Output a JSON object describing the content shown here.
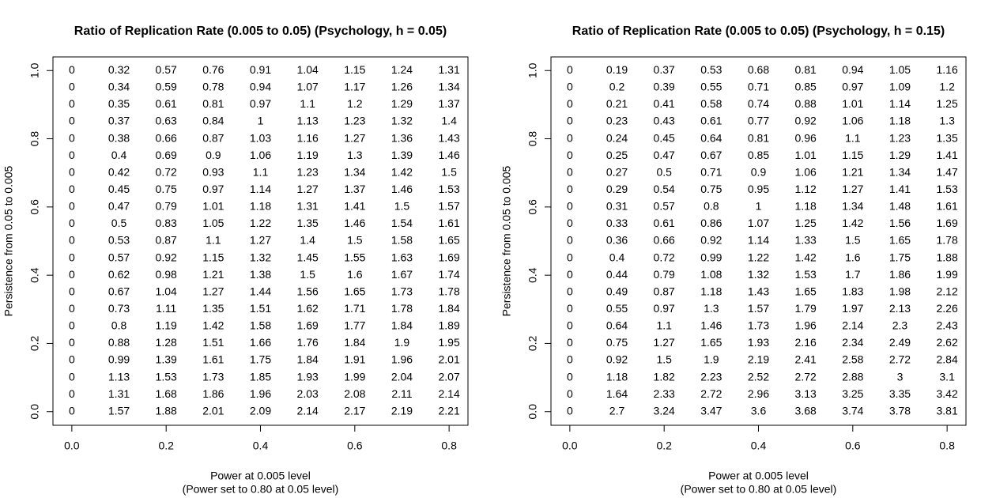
{
  "chart_data": [
    {
      "type": "text-grid",
      "title": "Ratio of Replication Rate (0.005 to 0.05) (Psychology, h = 0.05)",
      "xlabel": [
        "Power at 0.005 level",
        "(Power set to 0.80 at 0.05 level)"
      ],
      "ylabel": "Persistence from 0.05 to 0.005",
      "x": [
        0,
        0.1,
        0.2,
        0.3,
        0.4,
        0.5,
        0.6,
        0.7,
        0.8
      ],
      "y": [
        1,
        0.95,
        0.9,
        0.85,
        0.8,
        0.75,
        0.7,
        0.65,
        0.6,
        0.55,
        0.5,
        0.45,
        0.4,
        0.35,
        0.3,
        0.25,
        0.2,
        0.15,
        0.1,
        0.05,
        0
      ],
      "values": [
        [
          0,
          0.32,
          0.57,
          0.76,
          0.91,
          1.04,
          1.15,
          1.24,
          1.31
        ],
        [
          0,
          0.34,
          0.59,
          0.78,
          0.94,
          1.07,
          1.17,
          1.26,
          1.34
        ],
        [
          0,
          0.35,
          0.61,
          0.81,
          0.97,
          1.1,
          1.2,
          1.29,
          1.37
        ],
        [
          0,
          0.37,
          0.63,
          0.84,
          1,
          1.13,
          1.23,
          1.32,
          1.4
        ],
        [
          0,
          0.38,
          0.66,
          0.87,
          1.03,
          1.16,
          1.27,
          1.36,
          1.43
        ],
        [
          0,
          0.4,
          0.69,
          0.9,
          1.06,
          1.19,
          1.3,
          1.39,
          1.46
        ],
        [
          0,
          0.42,
          0.72,
          0.93,
          1.1,
          1.23,
          1.34,
          1.42,
          1.5
        ],
        [
          0,
          0.45,
          0.75,
          0.97,
          1.14,
          1.27,
          1.37,
          1.46,
          1.53
        ],
        [
          0,
          0.47,
          0.79,
          1.01,
          1.18,
          1.31,
          1.41,
          1.5,
          1.57
        ],
        [
          0,
          0.5,
          0.83,
          1.05,
          1.22,
          1.35,
          1.46,
          1.54,
          1.61
        ],
        [
          0,
          0.53,
          0.87,
          1.1,
          1.27,
          1.4,
          1.5,
          1.58,
          1.65
        ],
        [
          0,
          0.57,
          0.92,
          1.15,
          1.32,
          1.45,
          1.55,
          1.63,
          1.69
        ],
        [
          0,
          0.62,
          0.98,
          1.21,
          1.38,
          1.5,
          1.6,
          1.67,
          1.74
        ],
        [
          0,
          0.67,
          1.04,
          1.27,
          1.44,
          1.56,
          1.65,
          1.73,
          1.78
        ],
        [
          0,
          0.73,
          1.11,
          1.35,
          1.51,
          1.62,
          1.71,
          1.78,
          1.84
        ],
        [
          0,
          0.8,
          1.19,
          1.42,
          1.58,
          1.69,
          1.77,
          1.84,
          1.89
        ],
        [
          0,
          0.88,
          1.28,
          1.51,
          1.66,
          1.76,
          1.84,
          1.9,
          1.95
        ],
        [
          0,
          0.99,
          1.39,
          1.61,
          1.75,
          1.84,
          1.91,
          1.96,
          2.01
        ],
        [
          0,
          1.13,
          1.53,
          1.73,
          1.85,
          1.93,
          1.99,
          2.04,
          2.07
        ],
        [
          0,
          1.31,
          1.68,
          1.86,
          1.96,
          2.03,
          2.08,
          2.11,
          2.14
        ],
        [
          0,
          1.57,
          1.88,
          2.01,
          2.09,
          2.14,
          2.17,
          2.19,
          2.21
        ]
      ],
      "color": "#000000",
      "highlight_color": "#ff0000",
      "highlight_max": 1,
      "xlim": [
        -0.04,
        0.84
      ],
      "ylim": [
        -0.04,
        1.04
      ],
      "xticks": [
        {
          "value": 0,
          "label": "0.0"
        },
        0.2,
        0.4,
        0.6,
        0.8
      ],
      "yticks": [
        {
          "value": 0,
          "label": "0.0"
        },
        0.2,
        0.4,
        0.6,
        0.8,
        {
          "value": 1,
          "label": "1.0"
        }
      ]
    },
    {
      "type": "text-grid",
      "title": "Ratio of Replication Rate (0.005 to 0.05) (Psychology, h = 0.15)",
      "xlabel": [
        "Power at 0.005 level",
        "(Power set to 0.80 at 0.05 level)"
      ],
      "ylabel": "Persistence from 0.05 to 0.005",
      "x": [
        0,
        0.1,
        0.2,
        0.3,
        0.4,
        0.5,
        0.6,
        0.7,
        0.8
      ],
      "y": [
        1,
        0.95,
        0.9,
        0.85,
        0.8,
        0.75,
        0.7,
        0.65,
        0.6,
        0.55,
        0.5,
        0.45,
        0.4,
        0.35,
        0.3,
        0.25,
        0.2,
        0.15,
        0.1,
        0.05,
        0
      ],
      "values": [
        [
          0,
          0.19,
          0.37,
          0.53,
          0.68,
          0.81,
          0.94,
          1.05,
          1.16
        ],
        [
          0,
          0.2,
          0.39,
          0.55,
          0.71,
          0.85,
          0.97,
          1.09,
          1.2
        ],
        [
          0,
          0.21,
          0.41,
          0.58,
          0.74,
          0.88,
          1.01,
          1.14,
          1.25
        ],
        [
          0,
          0.23,
          0.43,
          0.61,
          0.77,
          0.92,
          1.06,
          1.18,
          1.3
        ],
        [
          0,
          0.24,
          0.45,
          0.64,
          0.81,
          0.96,
          1.1,
          1.23,
          1.35
        ],
        [
          0,
          0.25,
          0.47,
          0.67,
          0.85,
          1.01,
          1.15,
          1.29,
          1.41
        ],
        [
          0,
          0.27,
          0.5,
          0.71,
          0.9,
          1.06,
          1.21,
          1.34,
          1.47
        ],
        [
          0,
          0.29,
          0.54,
          0.75,
          0.95,
          1.12,
          1.27,
          1.41,
          1.53
        ],
        [
          0,
          0.31,
          0.57,
          0.8,
          1,
          1.18,
          1.34,
          1.48,
          1.61
        ],
        [
          0,
          0.33,
          0.61,
          0.86,
          1.07,
          1.25,
          1.42,
          1.56,
          1.69
        ],
        [
          0,
          0.36,
          0.66,
          0.92,
          1.14,
          1.33,
          1.5,
          1.65,
          1.78
        ],
        [
          0,
          0.4,
          0.72,
          0.99,
          1.22,
          1.42,
          1.6,
          1.75,
          1.88
        ],
        [
          0,
          0.44,
          0.79,
          1.08,
          1.32,
          1.53,
          1.7,
          1.86,
          1.99
        ],
        [
          0,
          0.49,
          0.87,
          1.18,
          1.43,
          1.65,
          1.83,
          1.98,
          2.12
        ],
        [
          0,
          0.55,
          0.97,
          1.3,
          1.57,
          1.79,
          1.97,
          2.13,
          2.26
        ],
        [
          0,
          0.64,
          1.1,
          1.46,
          1.73,
          1.96,
          2.14,
          2.3,
          2.43
        ],
        [
          0,
          0.75,
          1.27,
          1.65,
          1.93,
          2.16,
          2.34,
          2.49,
          2.62
        ],
        [
          0,
          0.92,
          1.5,
          1.9,
          2.19,
          2.41,
          2.58,
          2.72,
          2.84
        ],
        [
          0,
          1.18,
          1.82,
          2.23,
          2.52,
          2.72,
          2.88,
          3,
          3.1
        ],
        [
          0,
          1.64,
          2.33,
          2.72,
          2.96,
          3.13,
          3.25,
          3.35,
          3.42
        ],
        [
          0,
          2.7,
          3.24,
          3.47,
          3.6,
          3.68,
          3.74,
          3.78,
          3.81
        ]
      ],
      "color": "#000000",
      "highlight_color": "#ff0000",
      "highlight_max": 1,
      "xlim": [
        -0.04,
        0.84
      ],
      "ylim": [
        -0.04,
        1.04
      ],
      "xticks": [
        {
          "value": 0,
          "label": "0.0"
        },
        0.2,
        0.4,
        0.6,
        0.8
      ],
      "yticks": [
        {
          "value": 0,
          "label": "0.0"
        },
        0.2,
        0.4,
        0.6,
        0.8,
        {
          "value": 1,
          "label": "1.0"
        }
      ]
    }
  ]
}
